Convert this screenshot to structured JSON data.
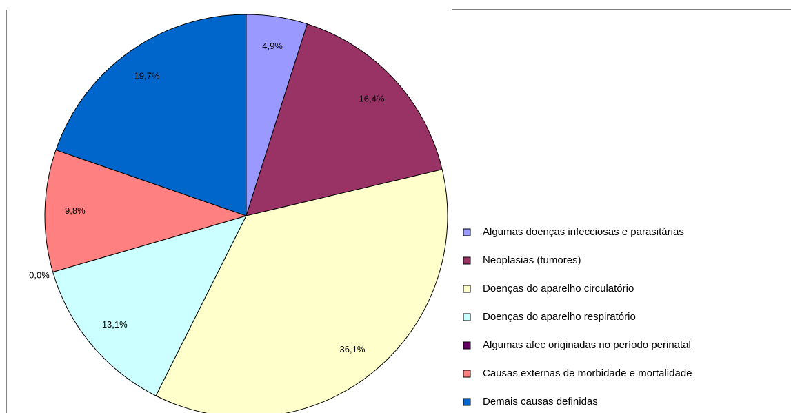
{
  "chart_data": {
    "type": "pie",
    "categories": [
      "Algumas doenças infecciosas e parasitárias",
      "Neoplasias (tumores)",
      "Doenças do aparelho circulatório",
      "Doenças do aparelho respiratório",
      "Algumas afec originadas no período perinatal",
      "Causas externas de morbidade e mortalidade",
      "Demais causas definidas"
    ],
    "values": [
      4.9,
      16.4,
      36.1,
      13.1,
      0.0,
      9.8,
      19.7
    ],
    "value_labels": [
      "4,9%",
      "16,4%",
      "36,1%",
      "13,1%",
      "0,0%",
      "9,8%",
      "19,7%"
    ],
    "colors": [
      "#9999ff",
      "#993366",
      "#ffffcc",
      "#ccffff",
      "#660066",
      "#ff8080",
      "#0066cc"
    ],
    "legend": "right"
  }
}
